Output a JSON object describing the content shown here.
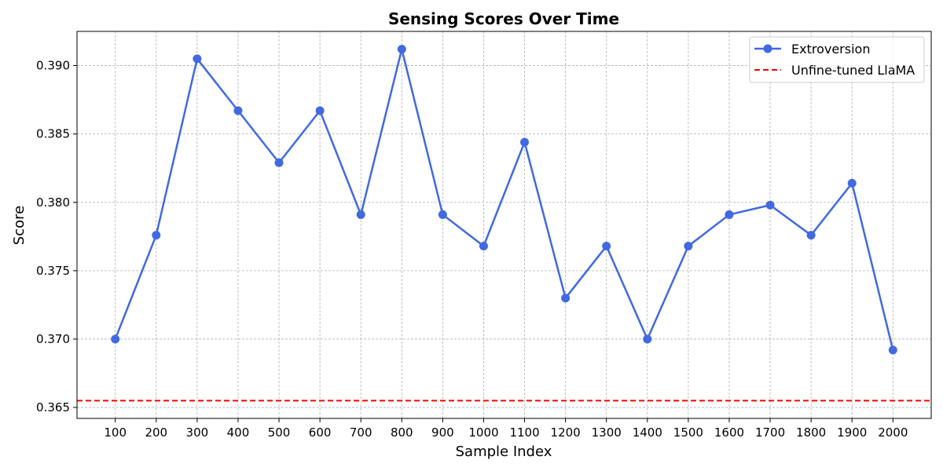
{
  "chart_data": {
    "type": "line",
    "title": "Sensing Scores Over Time",
    "xlabel": "Sample Index",
    "ylabel": "Score",
    "x": [
      100,
      200,
      300,
      400,
      500,
      600,
      700,
      800,
      900,
      1000,
      1100,
      1200,
      1300,
      1400,
      1500,
      1600,
      1700,
      1800,
      1900,
      2000
    ],
    "x_tick_labels": [
      "100",
      "200",
      "300",
      "400",
      "500",
      "600",
      "700",
      "800",
      "900",
      "1000",
      "1100",
      "1200",
      "1300",
      "1400",
      "1500",
      "1600",
      "1700",
      "1800",
      "1900",
      "2000"
    ],
    "xlim": [
      6.5,
      2093.5
    ],
    "ylim": [
      0.3642,
      0.3925
    ],
    "y_ticks": [
      0.365,
      0.37,
      0.375,
      0.38,
      0.385,
      0.39
    ],
    "y_tick_labels": [
      "0.365",
      "0.370",
      "0.375",
      "0.380",
      "0.385",
      "0.390"
    ],
    "series": [
      {
        "name": "Extroversion",
        "color": "#4169e1",
        "style": "solid",
        "marker": "circle",
        "values": [
          0.37,
          0.3776,
          0.3905,
          0.3867,
          0.3829,
          0.3867,
          0.3791,
          0.3912,
          0.3791,
          0.3768,
          0.3844,
          0.373,
          0.3768,
          0.37,
          0.3768,
          0.3791,
          0.3798,
          0.3776,
          0.3814,
          0.3692
        ]
      }
    ],
    "reference_lines": [
      {
        "name": "Unfine-tuned LlaMA",
        "value": 0.3655,
        "color": "#ff0000",
        "style": "dashed"
      }
    ],
    "grid": true,
    "legend_position": "top-right"
  }
}
